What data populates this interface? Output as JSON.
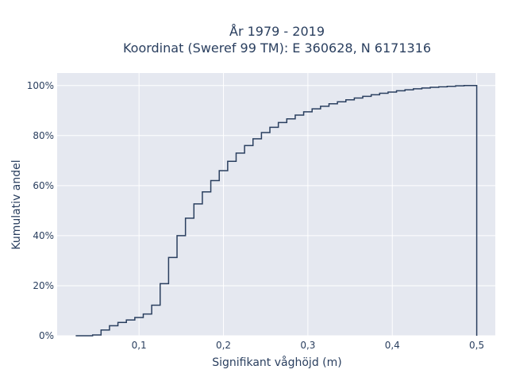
{
  "chart_data": {
    "type": "line",
    "subtype": "step-cdf",
    "title_line1": "År 1979 - 2019",
    "title_line2": "Koordinat (Sweref 99 TM): E 360628, N 6171316",
    "xlabel": "Signifikant våghöjd (m)",
    "ylabel": "Kumulativ andel",
    "xlim": [
      0.003,
      0.522
    ],
    "ylim": [
      0,
      1.05
    ],
    "x_ticks": [
      {
        "value": 0.1,
        "label": "0,1"
      },
      {
        "value": 0.2,
        "label": "0,2"
      },
      {
        "value": 0.3,
        "label": "0,3"
      },
      {
        "value": 0.4,
        "label": "0,4"
      },
      {
        "value": 0.5,
        "label": "0,5"
      }
    ],
    "y_ticks": [
      {
        "value": 0,
        "label": "0%"
      },
      {
        "value": 0.2,
        "label": "20%"
      },
      {
        "value": 0.4,
        "label": "40%"
      },
      {
        "value": 0.6,
        "label": "60%"
      },
      {
        "value": 0.8,
        "label": "80%"
      },
      {
        "value": 1.0,
        "label": "100%"
      }
    ],
    "grid": true,
    "line_color": "#2a3f5f",
    "plot_bg": "#e5e8f0",
    "x": [
      0.025,
      0.045,
      0.055,
      0.065,
      0.075,
      0.085,
      0.095,
      0.105,
      0.115,
      0.125,
      0.135,
      0.145,
      0.155,
      0.165,
      0.175,
      0.185,
      0.195,
      0.205,
      0.215,
      0.225,
      0.235,
      0.245,
      0.255,
      0.265,
      0.275,
      0.285,
      0.295,
      0.305,
      0.315,
      0.325,
      0.335,
      0.345,
      0.355,
      0.365,
      0.375,
      0.385,
      0.395,
      0.405,
      0.415,
      0.425,
      0.435,
      0.445,
      0.455,
      0.465,
      0.475,
      0.485,
      0.5
    ],
    "y": [
      0.0,
      0.003,
      0.023,
      0.04,
      0.053,
      0.063,
      0.073,
      0.087,
      0.122,
      0.208,
      0.313,
      0.4,
      0.47,
      0.527,
      0.575,
      0.62,
      0.66,
      0.697,
      0.73,
      0.76,
      0.787,
      0.812,
      0.833,
      0.852,
      0.867,
      0.882,
      0.895,
      0.907,
      0.917,
      0.927,
      0.935,
      0.943,
      0.95,
      0.957,
      0.963,
      0.969,
      0.974,
      0.979,
      0.983,
      0.987,
      0.99,
      0.993,
      0.995,
      0.997,
      0.999,
      1.0,
      1.0
    ]
  }
}
